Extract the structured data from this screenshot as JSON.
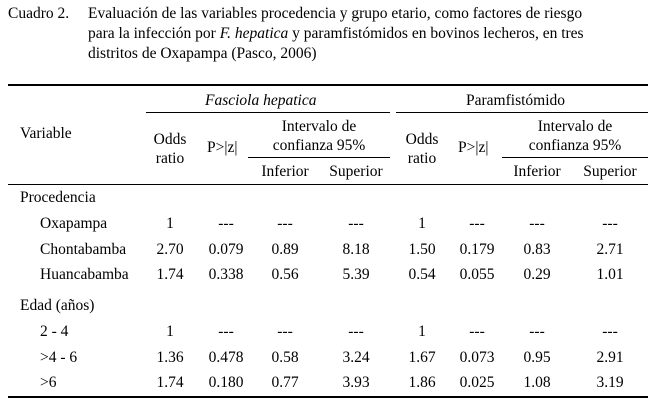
{
  "caption": {
    "label": "Cuadro 2.",
    "line1": "Evaluación de las variables procedencia y  grupo etario, como factores de riesgo",
    "line2_a": "para la infección por ",
    "line2_italic": "F. hepatica",
    "line2_b": " y paramfistómidos en bovinos lecheros, en tres",
    "line3": "distritos de Oxapampa (Pasco, 2006)"
  },
  "table": {
    "group1": "Fasciola hepatica",
    "group2": "Paramfistómido",
    "variable_header": "Variable",
    "odds": [
      "Odds",
      "ratio"
    ],
    "p": "P>|z|",
    "ci": [
      "Intervalo de",
      "confianza 95%"
    ],
    "inferior": "Inferior",
    "superior": "Superior",
    "sections": [
      {
        "title": "Procedencia",
        "rows": [
          {
            "label": "Oxapampa",
            "v": [
              "1",
              "---",
              "---",
              "---",
              "1",
              "---",
              "---",
              "---"
            ]
          },
          {
            "label": "Chontabamba",
            "v": [
              "2.70",
              "0.079",
              "0.89",
              "8.18",
              "1.50",
              "0.179",
              "0.83",
              "2.71"
            ]
          },
          {
            "label": "Huancabamba",
            "v": [
              "1.74",
              "0.338",
              "0.56",
              "5.39",
              "0.54",
              "0.055",
              "0.29",
              "1.01"
            ]
          }
        ]
      },
      {
        "title": "Edad (años)",
        "rows": [
          {
            "label": "2 - 4",
            "v": [
              "1",
              "---",
              "---",
              "---",
              "1",
              "---",
              "---",
              "---"
            ]
          },
          {
            "label": ">4 - 6",
            "v": [
              "1.36",
              "0.478",
              "0.58",
              "3.24",
              "1.67",
              "0.073",
              "0.95",
              "2.91"
            ]
          },
          {
            "label": ">6",
            "v": [
              "1.74",
              "0.180",
              "0.77",
              "3.93",
              "1.86",
              "0.025",
              "1.08",
              "3.19"
            ]
          }
        ]
      }
    ]
  }
}
